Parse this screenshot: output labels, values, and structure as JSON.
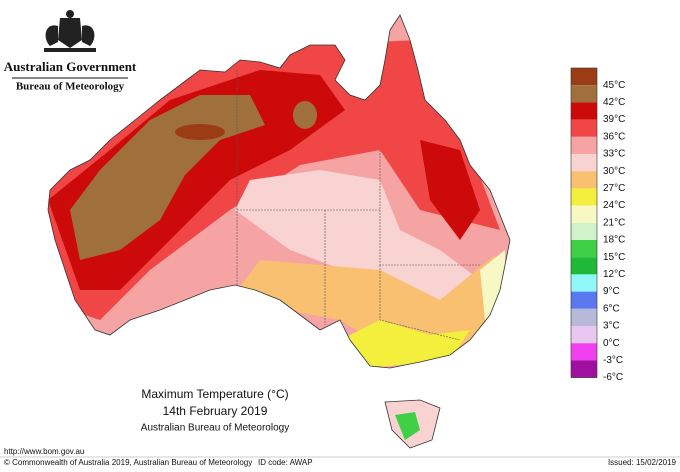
{
  "header": {
    "agency": "Australian Government",
    "bureau": "Bureau of Meteorology"
  },
  "title": {
    "line1": "Maximum Temperature (°C)",
    "line2": "14th February 2019",
    "line3": "Australian Bureau of Meteorology"
  },
  "legend": {
    "items": [
      {
        "label": "45°C",
        "color": "#9c3c14"
      },
      {
        "label": "42°C",
        "color": "#a0703c"
      },
      {
        "label": "39°C",
        "color": "#cc0a0a"
      },
      {
        "label": "36°C",
        "color": "#f04646"
      },
      {
        "label": "33°C",
        "color": "#f5a3a3"
      },
      {
        "label": "30°C",
        "color": "#f9d2d2"
      },
      {
        "label": "27°C",
        "color": "#f8c070"
      },
      {
        "label": "24°C",
        "color": "#f4ee3c"
      },
      {
        "label": "21°C",
        "color": "#f8f8c4"
      },
      {
        "label": "18°C",
        "color": "#d2f2cc"
      },
      {
        "label": "15°C",
        "color": "#40d048"
      },
      {
        "label": "12°C",
        "color": "#20b838"
      },
      {
        "label": "9°C",
        "color": "#90f8f8"
      },
      {
        "label": "6°C",
        "color": "#5a78f0"
      },
      {
        "label": "3°C",
        "color": "#b8b8d8"
      },
      {
        "label": "0°C",
        "color": "#e8c8f0"
      },
      {
        "label": "-3°C",
        "color": "#f040f0"
      },
      {
        "label": "-6°C",
        "color": "#a010a0"
      }
    ]
  },
  "footer": {
    "url": "http://www.bom.gov.au",
    "copyright": "© Commonwealth of Australia 2019, Australian Bureau of Meteorology",
    "id_code": "ID code: AWAP",
    "issued": "Issued: 15/02/2019"
  }
}
